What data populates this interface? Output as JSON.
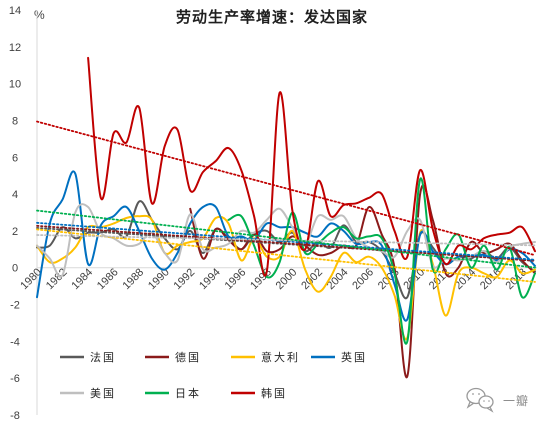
{
  "chart_data": {
    "type": "line",
    "title": "劳动生产率增速：发达国家",
    "ylabel": "%",
    "xlabel": "",
    "xlim": [
      1980,
      2019
    ],
    "ylim": [
      -8,
      14
    ],
    "grid": false,
    "legend": "bottom-left",
    "smoothed": true,
    "trendline": "linear",
    "x": [
      1980,
      1981,
      1982,
      1983,
      1984,
      1985,
      1986,
      1987,
      1988,
      1989,
      1990,
      1991,
      1992,
      1993,
      1994,
      1995,
      1996,
      1997,
      1998,
      1999,
      2000,
      2001,
      2002,
      2003,
      2004,
      2005,
      2006,
      2007,
      2008,
      2009,
      2010,
      2011,
      2012,
      2013,
      2014,
      2015,
      2016,
      2017,
      2018,
      2019
    ],
    "xticks": [
      "1980",
      "1982",
      "1984",
      "1986",
      "1988",
      "1990",
      "1992",
      "1994",
      "1996",
      "1998",
      "2000",
      "2002",
      "2004",
      "2006",
      "2008",
      "2010",
      "2012",
      "2014",
      "2016",
      "2018"
    ],
    "yticks": [
      "14",
      "12",
      "10",
      "8",
      "6",
      "4",
      "2",
      "0",
      "-2",
      "-4",
      "-6",
      "-8"
    ],
    "series": [
      {
        "name": "法国",
        "color": "#595959",
        "values": [
          1.1,
          1.2,
          2.2,
          1.6,
          1.9,
          1.9,
          2.1,
          1.7,
          3.6,
          2.6,
          1.6,
          1.0,
          2.0,
          0.8,
          2.1,
          1.6,
          1.0,
          1.8,
          2.0,
          1.4,
          1.9,
          0.9,
          1.4,
          1.1,
          2.3,
          1.4,
          1.4,
          0.9,
          -0.3,
          -1.6,
          1.8,
          1.1,
          0.2,
          0.6,
          0.5,
          0.9,
          0.5,
          1.1,
          0.3,
          -0.2
        ]
      },
      {
        "name": "德国",
        "color": "#8B1A1A",
        "values": [
          null,
          null,
          null,
          null,
          null,
          null,
          null,
          null,
          null,
          null,
          null,
          null,
          3.2,
          0.5,
          2.1,
          1.5,
          1.0,
          1.8,
          0.9,
          1.0,
          1.7,
          1.2,
          0.7,
          0.8,
          1.2,
          1.2,
          3.3,
          1.8,
          0.0,
          -5.9,
          4.0,
          2.6,
          -0.3,
          0.0,
          1.4,
          0.8,
          1.0,
          1.3,
          0.4,
          -0.3
        ]
      },
      {
        "name": "意大利",
        "color": "#FFC000",
        "values": [
          1.2,
          0.3,
          0.5,
          1.1,
          2.2,
          2.2,
          2.4,
          2.7,
          2.8,
          2.6,
          0.8,
          1.2,
          1.4,
          1.6,
          2.7,
          2.4,
          0.4,
          1.6,
          0.6,
          0.6,
          2.0,
          -0.1,
          -1.3,
          -0.5,
          0.8,
          0.3,
          0.6,
          0.0,
          -1.5,
          -3.8,
          1.9,
          0.2,
          -2.6,
          -0.3,
          0.0,
          -0.3,
          -0.5,
          0.4,
          -0.3,
          -0.1
        ]
      },
      {
        "name": "英国",
        "color": "#0070C0",
        "values": [
          -1.6,
          2.4,
          3.7,
          5.1,
          0.2,
          2.3,
          2.8,
          3.3,
          2.0,
          0.5,
          -0.1,
          0.8,
          2.4,
          3.3,
          3.3,
          1.7,
          1.7,
          1.5,
          2.4,
          2.2,
          2.2,
          1.9,
          1.7,
          2.4,
          2.0,
          1.3,
          1.4,
          1.2,
          -0.9,
          -2.8,
          1.8,
          0.9,
          0.2,
          0.6,
          0.6,
          0.7,
          0.4,
          1.0,
          0.8,
          0.1
        ]
      },
      {
        "name": "美国",
        "color": "#BFBFBF",
        "values": [
          1.2,
          0.5,
          -0.4,
          3.0,
          3.3,
          1.9,
          1.6,
          1.2,
          1.3,
          1.9,
          0.8,
          0.4,
          2.9,
          1.0,
          1.1,
          1.3,
          2.0,
          1.9,
          2.6,
          3.2,
          2.2,
          1.3,
          2.8,
          2.6,
          2.8,
          1.6,
          1.1,
          0.9,
          0.6,
          2.0,
          2.6,
          0.1,
          0.5,
          0.4,
          0.6,
          0.9,
          0.3,
          1.1,
          1.3,
          1.4
        ]
      },
      {
        "name": "日本",
        "color": "#00B050",
        "values": [
          null,
          null,
          null,
          null,
          null,
          null,
          null,
          null,
          null,
          null,
          null,
          null,
          null,
          null,
          null,
          2.6,
          2.8,
          1.2,
          -0.5,
          0.3,
          3.0,
          0.8,
          1.3,
          1.9,
          2.2,
          1.6,
          1.7,
          1.6,
          -0.3,
          -4.0,
          4.8,
          -0.1,
          1.0,
          1.8,
          0.0,
          1.2,
          -0.1,
          1.1,
          -1.6,
          -0.3
        ]
      },
      {
        "name": "韩国",
        "color": "#C00000",
        "values": [
          null,
          null,
          null,
          null,
          11.4,
          3.8,
          7.3,
          6.8,
          8.7,
          3.5,
          6.6,
          7.5,
          4.2,
          5.2,
          5.8,
          6.5,
          5.3,
          2.8,
          -0.2,
          9.5,
          3.1,
          1.0,
          4.7,
          2.8,
          3.4,
          3.5,
          3.8,
          4.0,
          2.0,
          0.6,
          5.3,
          2.1,
          0.2,
          1.2,
          1.0,
          1.6,
          1.8,
          1.9,
          2.2,
          0.9
        ]
      }
    ]
  },
  "watermark": {
    "text": "一瓣",
    "icon": "wechat-icon",
    "color": "#8c8c8c"
  }
}
